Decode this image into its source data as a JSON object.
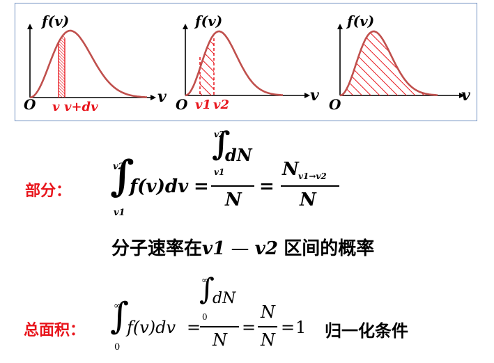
{
  "panels": {
    "fv_label": "f(v)",
    "v_label": "v",
    "origin_label": "O",
    "panel1_marks": [
      "v",
      "v+dv"
    ],
    "panel2_marks": [
      "v1",
      "v2"
    ],
    "colors": {
      "curve": "#c0504d",
      "hatch": "#e8141b",
      "axis": "#000000",
      "border": "#6f8fc0"
    }
  },
  "partial": {
    "label": "部分：",
    "lower": "v1",
    "upper": "v2",
    "integrand": "f(v)dv",
    "equals": "=",
    "frac1_num": "dN",
    "frac1_den": "N",
    "frac2_num": "N",
    "frac2_num_sub": "v1→v2",
    "frac2_den": "N",
    "caption_pre": "分子速率在",
    "caption_v1": "v1",
    "caption_dash": "—",
    "caption_v2": "v2",
    "caption_post": "区间的概率"
  },
  "total": {
    "label": "总面积：",
    "lower": "0",
    "upper": "∞",
    "integrand": "f(v)dv",
    "frac1_num": "dN",
    "frac1_den": "N",
    "frac2_num": "N",
    "frac2_den": "N",
    "equals": "=",
    "one": "1",
    "note": "归一化条件"
  }
}
